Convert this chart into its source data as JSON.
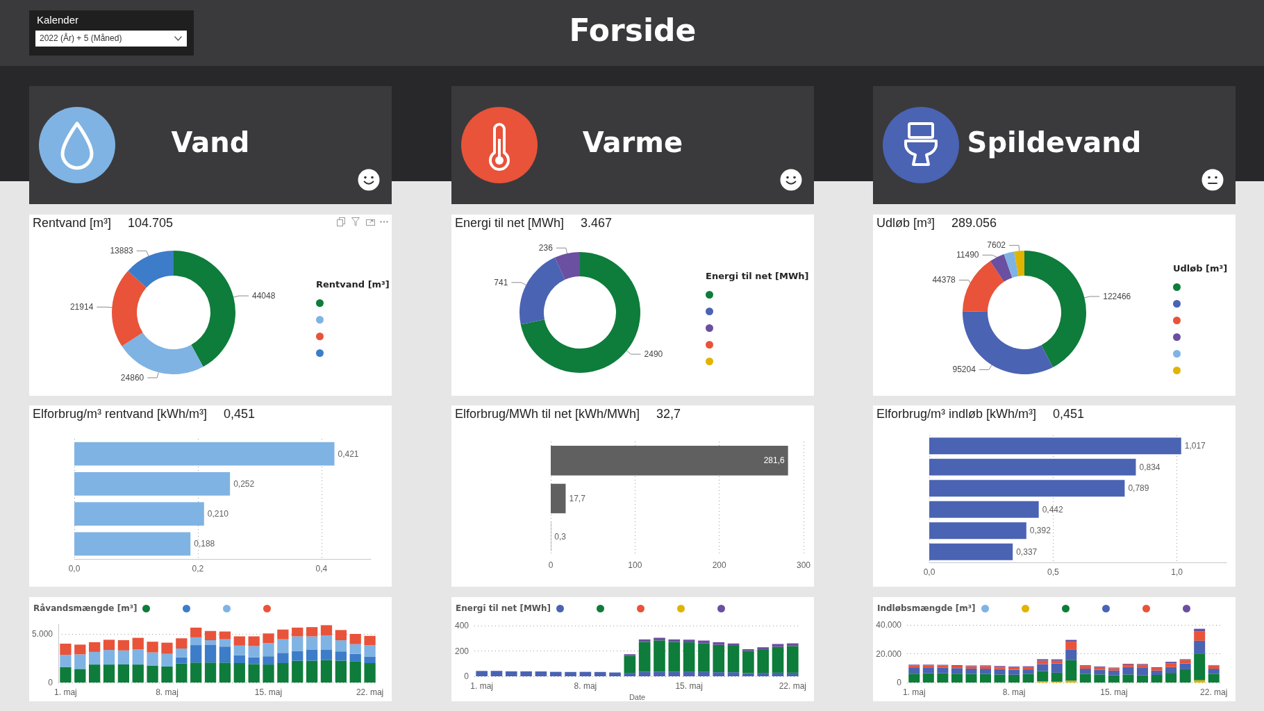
{
  "chart_data": [
    {
      "type": "donut",
      "title": "Rentvand [m³]",
      "subtitle": "104.705",
      "legend_title": "Rentvand [m³]",
      "categories": [
        null,
        null,
        null,
        null
      ],
      "values": [
        44048,
        24860,
        21914,
        13883
      ],
      "colors": [
        "#0e7c3a",
        "#7fb3e3",
        "#e8533a",
        "#3d7cc9"
      ],
      "data_labels": true,
      "annotations": [
        "Forside",
        "Kalender",
        "2022 (År) + 5 (Måned)",
        "Vand"
      ]
    },
    {
      "type": "donut",
      "title": "Energi til net [MWh]",
      "subtitle": "3.467",
      "legend_title": "Energi til net [MWh]",
      "categories": [
        null,
        null,
        null,
        null,
        null
      ],
      "values": [
        2490,
        741,
        236,
        null,
        null
      ],
      "colors": [
        "#0e7c3a",
        "#4a63b3",
        "#6b4fa0",
        "#e8533a",
        "#e0b400"
      ],
      "data_labels": true,
      "annotations": [
        "Varme"
      ]
    },
    {
      "type": "donut",
      "title": "Udløb [m³]",
      "subtitle": "289.056",
      "legend_title": "Udløb [m³]",
      "categories": [
        null,
        null,
        null,
        null,
        null,
        null
      ],
      "values": [
        122466,
        95204,
        44378,
        11490,
        7916,
        7602
      ],
      "value_labels": [
        "122466",
        "95204",
        "44378",
        "11490",
        null,
        "7602"
      ],
      "colors": [
        "#0e7c3a",
        "#4a63b3",
        "#e8533a",
        "#6b4fa0",
        "#7fb3e3",
        "#e0b400"
      ],
      "annotations": [
        "Spildevand"
      ]
    },
    {
      "type": "bar",
      "orientation": "horizontal",
      "title": "Elforbrug/m³ rentvand [kWh/m³]",
      "subtitle": "0,451",
      "categories": [
        null,
        null,
        null,
        null
      ],
      "values": [
        0.421,
        0.252,
        0.21,
        0.188
      ],
      "value_labels": [
        "0,421",
        "0,252",
        "0,210",
        "0,188"
      ],
      "color": "#7fb3e3",
      "xlim": [
        0,
        0.48
      ],
      "xticks": [
        {
          "value": 0,
          "label": "0,0"
        },
        {
          "value": 0.2,
          "label": "0,2"
        },
        {
          "value": 0.4,
          "label": "0,4"
        }
      ],
      "grid": "x"
    },
    {
      "type": "bar",
      "orientation": "horizontal",
      "title": "Elforbrug/MWh til net [kWh/MWh]",
      "subtitle": "32,7",
      "categories": [
        null,
        null,
        null
      ],
      "values": [
        281.6,
        17.7,
        0.3
      ],
      "value_labels": [
        "281,6",
        "17,7",
        "0,3"
      ],
      "color": "#606060",
      "xlim": [
        0,
        300
      ],
      "xticks": [
        0,
        100,
        200,
        300
      ],
      "grid": "x"
    },
    {
      "type": "bar",
      "orientation": "horizontal",
      "title": "Elforbrug/m³ indløb [kWh/m³]",
      "subtitle": "0,451",
      "categories": [
        null,
        null,
        null,
        null,
        null,
        null
      ],
      "values": [
        1.017,
        0.834,
        0.789,
        0.442,
        0.392,
        0.337
      ],
      "value_labels": [
        "1,017",
        "0,834",
        "0,789",
        "0,442",
        "0,392",
        "0,337"
      ],
      "color": "#4a63b3",
      "xlim": [
        0,
        1.2
      ],
      "xticks": [
        {
          "value": 0,
          "label": "0,0"
        },
        {
          "value": 0.5,
          "label": "0,5"
        },
        {
          "value": 1,
          "label": "1,0"
        }
      ],
      "grid": "x"
    },
    {
      "type": "bar",
      "stacked": true,
      "legend_title": "Råvandsmængde [m³]",
      "grid": "y",
      "categories": [
        "1. maj",
        null,
        null,
        null,
        null,
        null,
        null,
        "8. maj",
        null,
        null,
        null,
        null,
        null,
        null,
        "15. maj",
        null,
        null,
        null,
        null,
        null,
        null,
        "22. maj"
      ],
      "ylim": [
        0,
        6000
      ],
      "yticks": [
        0,
        {
          "value": 5000,
          "label": "5.000"
        }
      ],
      "series": [
        {
          "color": "#0e7c3a",
          "values": [
            1600,
            1400,
            1850,
            1850,
            1850,
            1850,
            1750,
            1650,
            1950,
            2050,
            2050,
            2050,
            2000,
            1900,
            1850,
            2000,
            2250,
            2250,
            2300,
            2250,
            2150,
            2000
          ]
        },
        {
          "color": "#3d7cc9",
          "values": [
            null,
            null,
            null,
            null,
            null,
            null,
            null,
            null,
            650,
            1800,
            1800,
            1650,
            800,
            700,
            850,
            1050,
            1000,
            1150,
            1100,
            950,
            800,
            650
          ]
        },
        {
          "color": "#7fb3e3",
          "values": [
            1250,
            1500,
            1300,
            1500,
            1450,
            1550,
            1350,
            1300,
            900,
            800,
            500,
            750,
            1000,
            1150,
            1350,
            1400,
            1500,
            1350,
            1450,
            1150,
            1000,
            1200
          ]
        },
        {
          "color": "#e8533a",
          "values": [
            1150,
            1000,
            1000,
            1050,
            1050,
            1200,
            1100,
            1150,
            1050,
            1000,
            950,
            800,
            950,
            1000,
            1000,
            1000,
            900,
            950,
            1050,
            1050,
            1050,
            950
          ]
        }
      ]
    },
    {
      "type": "bar",
      "stacked": true,
      "legend_title": "Energi til net [MWh]",
      "grid": "y",
      "xlabel": "Date",
      "categories": [
        "1. maj",
        null,
        null,
        null,
        null,
        null,
        null,
        "8. maj",
        null,
        null,
        null,
        null,
        null,
        null,
        "15. maj",
        null,
        null,
        null,
        null,
        null,
        null,
        "22. maj"
      ],
      "ylim": [
        0,
        400
      ],
      "yticks": [
        0,
        200,
        400
      ],
      "series": [
        {
          "color": "#4a63b3",
          "values": [
            42,
            42,
            39,
            39,
            39,
            35,
            34,
            35,
            34,
            30,
            27,
            35,
            35,
            35,
            34,
            34,
            32,
            32,
            25,
            27,
            28,
            28
          ]
        },
        {
          "color": "#0e7c3a",
          "values": [
            null,
            null,
            null,
            null,
            null,
            null,
            null,
            null,
            null,
            null,
            133,
            237,
            248,
            237,
            234,
            225,
            216,
            209,
            175,
            186,
            204,
            211
          ]
        },
        {
          "color": "#e8533a",
          "values": [
            null,
            null,
            null,
            null,
            null,
            null,
            null,
            null,
            null,
            null,
            null,
            null,
            null,
            null,
            null,
            null,
            null,
            null,
            null,
            null,
            null,
            null
          ]
        },
        {
          "color": "#e0b400",
          "values": [
            null,
            null,
            null,
            null,
            null,
            null,
            null,
            null,
            null,
            null,
            null,
            null,
            null,
            null,
            null,
            null,
            null,
            null,
            null,
            null,
            null,
            null
          ]
        },
        {
          "color": "#6b4fa0",
          "values": [
            null,
            null,
            null,
            null,
            null,
            null,
            null,
            null,
            null,
            null,
            14,
            19,
            21,
            19,
            21,
            23,
            21,
            18,
            14,
            16,
            23,
            21
          ]
        }
      ]
    },
    {
      "type": "bar",
      "stacked": true,
      "legend_title": "Indløbsmængde [m³]",
      "grid": "y",
      "categories": [
        "1. maj",
        null,
        null,
        null,
        null,
        null,
        null,
        "8. maj",
        null,
        null,
        null,
        null,
        null,
        null,
        "15. maj",
        null,
        null,
        null,
        null,
        null,
        null,
        "22. maj"
      ],
      "ylim": [
        0,
        40000
      ],
      "yticks": [
        0,
        {
          "value": 20000,
          "label": "20.000"
        },
        {
          "value": 40000,
          "label": "40.000"
        }
      ],
      "series": [
        {
          "color": "#7fb3e3",
          "values": [
            null,
            null,
            null,
            null,
            null,
            null,
            null,
            null,
            null,
            null,
            null,
            null,
            null,
            null,
            null,
            null,
            null,
            null,
            null,
            null,
            null,
            null
          ]
        },
        {
          "color": "#e0b400",
          "values": [
            null,
            null,
            null,
            null,
            null,
            null,
            null,
            null,
            null,
            800,
            600,
            1300,
            null,
            null,
            null,
            null,
            null,
            null,
            null,
            null,
            1600,
            null
          ]
        },
        {
          "color": "#0e7c3a",
          "values": [
            6100,
            6400,
            6400,
            6200,
            5900,
            5900,
            5600,
            5400,
            5900,
            7200,
            6200,
            14200,
            6100,
            5600,
            5100,
            5600,
            5100,
            5300,
            6700,
            9200,
            18200,
            6100
          ]
        },
        {
          "color": "#4a63b3",
          "values": [
            4000,
            4100,
            3800,
            3800,
            3800,
            3700,
            3700,
            3500,
            3200,
            4800,
            6400,
            7200,
            3500,
            3200,
            3200,
            5100,
            5400,
            3000,
            4000,
            4000,
            9200,
            3500
          ]
        },
        {
          "color": "#e8533a",
          "values": [
            1800,
            1400,
            1600,
            1600,
            1600,
            1800,
            1600,
            1600,
            1600,
            2400,
            1900,
            5600,
            1900,
            1900,
            1600,
            1800,
            1900,
            1800,
            2600,
            2400,
            6400,
            2200
          ]
        },
        {
          "color": "#6b4fa0",
          "values": [
            500,
            500,
            500,
            500,
            500,
            500,
            600,
            600,
            600,
            1000,
            1000,
            1300,
            500,
            500,
            500,
            500,
            500,
            500,
            1100,
            600,
            1900,
            300
          ]
        }
      ]
    }
  ]
}
